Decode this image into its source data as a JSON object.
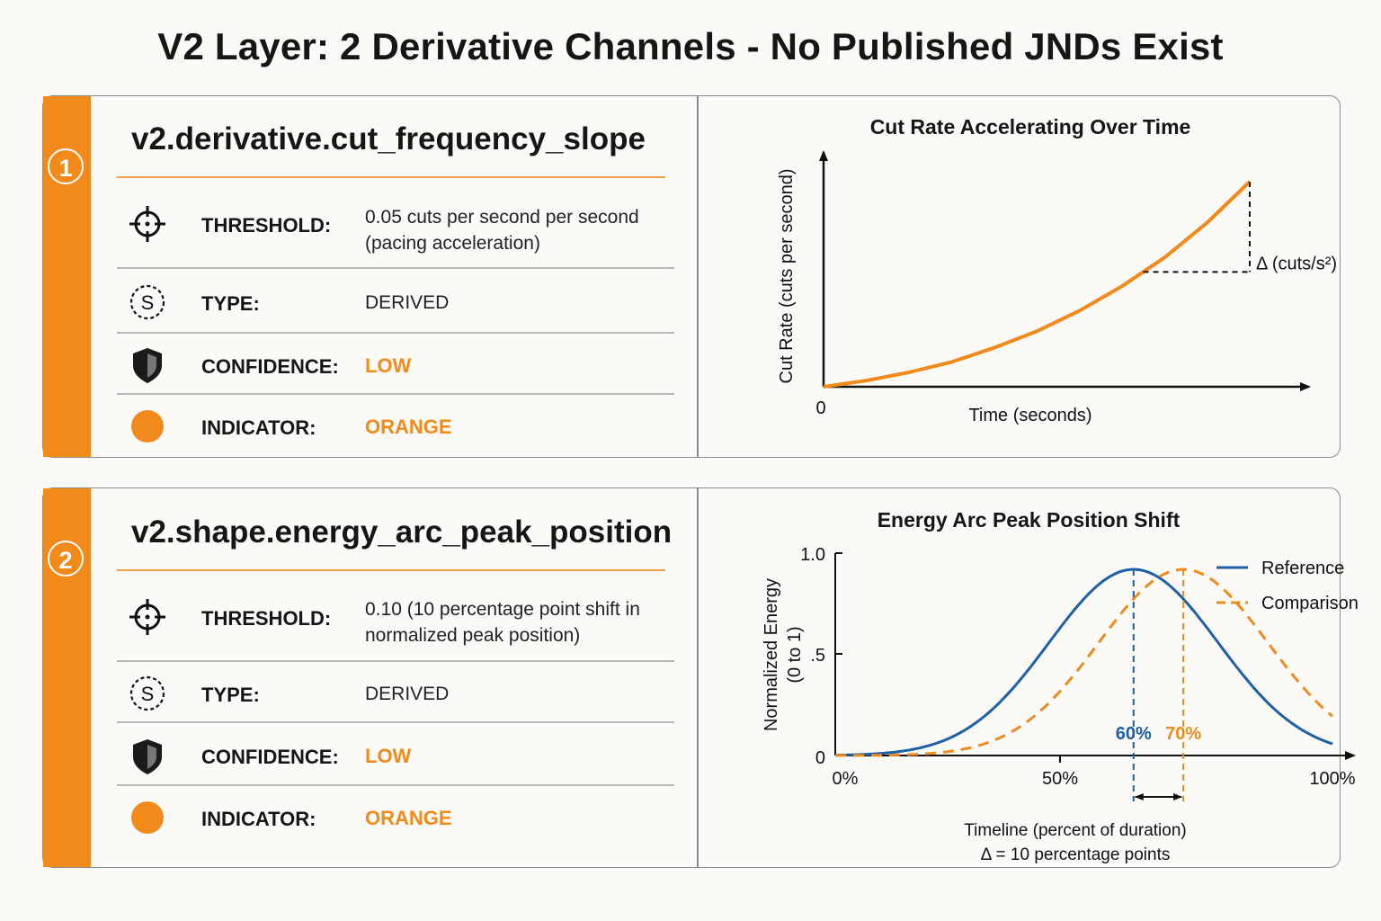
{
  "title": "V2 Layer: 2 Derivative Channels - No Published JNDs Exist",
  "colors": {
    "accent": "#f28a1b",
    "reference": "#1f5fa6",
    "comparison": "#ef8a1e",
    "border": "#8a8a8a"
  },
  "labels": {
    "threshold": "THRESHOLD:",
    "type": "TYPE:",
    "confidence": "CONFIDENCE:",
    "indicator": "INDICATOR:"
  },
  "channels": [
    {
      "number": "1",
      "name": "v2.derivative.cut_frequency_slope",
      "threshold_line1": "0.05 cuts per second per second",
      "threshold_line2": "(pacing acceleration)",
      "type": "DERIVED",
      "confidence": "LOW",
      "indicator": "ORANGE",
      "icons": [
        "target-icon",
        "dollar-icon",
        "shield-icon",
        "orange-dot-icon"
      ]
    },
    {
      "number": "2",
      "name": "v2.shape.energy_arc_peak_position",
      "threshold_line1": "0.10 (10 percentage point shift in",
      "threshold_line2": "normalized peak position)",
      "type": "DERIVED",
      "confidence": "LOW",
      "indicator": "ORANGE",
      "icons": [
        "target-icon",
        "dollar-icon",
        "shield-icon",
        "orange-dot-icon"
      ]
    }
  ],
  "chart_data": [
    {
      "type": "line",
      "title": "Cut Rate Accelerating Over Time",
      "xlabel": "Time (seconds)",
      "ylabel": "Cut Rate (cuts per second)",
      "origin_label": "0",
      "series": [
        {
          "x": [
            0,
            0.1,
            0.2,
            0.3,
            0.4,
            0.5,
            0.6,
            0.7,
            0.75,
            0.8,
            0.9,
            1.0
          ],
          "y": [
            0,
            0.03,
            0.07,
            0.12,
            0.19,
            0.27,
            0.37,
            0.49,
            0.56,
            0.63,
            0.8,
            1.0
          ]
        }
      ],
      "annotation": {
        "label": "Δ (cuts/s²)",
        "from_x": 0.75,
        "to_x": 1.0
      },
      "grid": false
    },
    {
      "type": "line",
      "title": "Energy Arc Peak Position Shift",
      "xlabel_line1": "Timeline (percent of duration)",
      "xlabel_line2": "Δ = 10 percentage points",
      "ylabel_line1": "Normalized Energy",
      "ylabel_line2": "(0 to 1)",
      "x_ticks": [
        "0%",
        "50%",
        "100%"
      ],
      "y_ticks": [
        "0",
        ".5",
        "1.0"
      ],
      "ylim": [
        0,
        1
      ],
      "series": [
        {
          "name": "Reference",
          "peak": 60,
          "peak_value": 0.92,
          "peak_label": "60%",
          "style": "solid"
        },
        {
          "name": "Comparison",
          "peak": 70,
          "peak_value": 0.92,
          "peak_label": "70%",
          "style": "dashed"
        }
      ],
      "legend_position": "top-right",
      "grid": false
    }
  ]
}
